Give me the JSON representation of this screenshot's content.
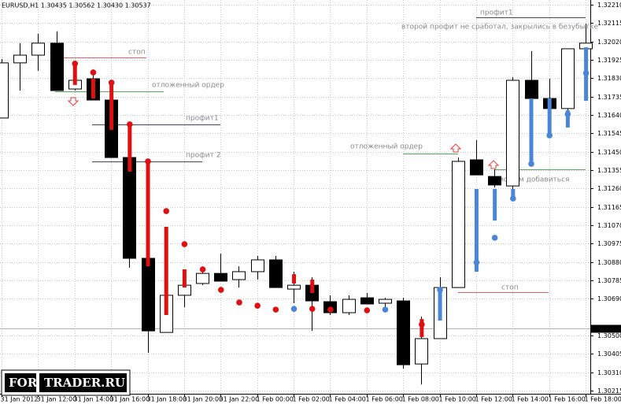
{
  "chart_data": {
    "type": "candlestick",
    "header": "EURUSD,H1  1.30435 1.30562 1.30430 1.30537",
    "categories": [
      "31 Jan 2012",
      null,
      "31 Jan 12:00",
      null,
      "31 Jan 14:00",
      null,
      "31 Jan 16:00",
      null,
      "31 Jan 18:00",
      null,
      "31 Jan 20:00",
      null,
      "31 Jan 22:00",
      null,
      "1 Feb 00:00",
      null,
      "1 Feb 02:00",
      null,
      "1 Feb 04:00",
      null,
      "1 Feb 06:00",
      null,
      "1 Feb 08:00",
      null,
      "1 Feb 10:00",
      null,
      "1 Feb 12:00",
      null,
      "1 Feb 14:00",
      null,
      "1 Feb 16:00",
      null,
      "1 Feb 18:00"
    ],
    "open": [
      1.31624,
      1.31909,
      1.31949,
      1.32011,
      1.31774,
      1.31827,
      1.31717,
      1.3142,
      1.30899,
      1.30516,
      1.30708,
      1.30769,
      1.30821,
      1.30789,
      1.3083,
      1.30891,
      1.3074,
      1.3076,
      1.30675,
      1.30618,
      1.30695,
      1.30667,
      1.30679,
      1.30353,
      1.30484,
      1.30748,
      1.31408,
      1.31322,
      1.31273,
      1.31819,
      1.31725,
      1.31673,
      1.31982
    ],
    "high": [
      1.31929,
      1.32011,
      1.32059,
      1.32072,
      1.31868,
      1.3186,
      1.31766,
      1.3142,
      1.30899,
      1.30708,
      1.3083,
      1.3085,
      1.30923,
      1.30858,
      1.30911,
      1.30911,
      1.3083,
      1.30801,
      1.30708,
      1.30708,
      1.3072,
      1.30695,
      1.30695,
      1.30598,
      1.30801,
      1.3142,
      1.3151,
      1.31359,
      1.31835,
      1.3197,
      1.31827,
      1.31982,
      1.32112
    ],
    "low": [
      1.31624,
      1.31766,
      1.31868,
      1.31766,
      1.31766,
      1.31717,
      1.3142,
      1.3085,
      1.3041,
      1.30516,
      1.30646,
      1.3076,
      1.30781,
      1.30748,
      1.30789,
      1.30748,
      1.30667,
      1.30524,
      1.30606,
      1.30606,
      1.30663,
      1.30646,
      1.30329,
      1.30247,
      1.30484,
      1.30748,
      1.3133,
      1.31265,
      1.31216,
      1.31725,
      1.31664,
      1.31664,
      1.31982
    ],
    "close": [
      1.31909,
      1.31949,
      1.32011,
      1.31766,
      1.31819,
      1.31717,
      1.3142,
      1.30899,
      1.30524,
      1.30708,
      1.3076,
      1.30821,
      1.30781,
      1.3083,
      1.30891,
      1.30748,
      1.3076,
      1.30679,
      1.30618,
      1.30687,
      1.30663,
      1.30687,
      1.30349,
      1.30484,
      1.30748,
      1.314,
      1.3133,
      1.31278,
      1.31819,
      1.31725,
      1.31673,
      1.31982,
      1.32011
    ],
    "bull_color": "#ffffff",
    "bear_color": "#000000",
    "signals": [
      {
        "color": "#e01010",
        "bars": [
          null,
          null,
          null,
          null,
          [
            1.31901,
            1.31795
          ],
          [
            1.31827,
            1.31725
          ],
          [
            1.31807,
            1.31563
          ],
          [
            1.31583,
            1.31347
          ],
          [
            1.31412,
            1.30858
          ],
          [
            1.31062,
            1.30606
          ],
          [
            1.30842,
            1.30748
          ],
          null,
          null,
          null,
          null,
          null,
          [
            1.30817,
            1.30769
          ],
          [
            1.30789,
            1.3072
          ],
          null,
          null,
          null,
          null,
          null,
          [
            1.30585,
            1.30492
          ],
          null,
          null,
          null,
          null,
          null,
          null,
          null,
          null,
          null
        ],
        "dots": [
          null,
          null,
          null,
          null,
          1.31905,
          1.3186,
          1.31807,
          1.31591,
          1.314,
          1.31143,
          1.30972,
          1.30842,
          1.30736,
          1.30671,
          1.30654,
          1.30634,
          null,
          1.30638,
          1.30634,
          null,
          1.3063,
          null,
          null,
          1.30557,
          null,
          null,
          null,
          null,
          null,
          null,
          null,
          null,
          null
        ]
      },
      {
        "color": "#4a86d8",
        "bars": [
          null,
          null,
          null,
          null,
          null,
          null,
          null,
          null,
          null,
          null,
          null,
          null,
          null,
          null,
          null,
          null,
          null,
          null,
          null,
          null,
          null,
          null,
          null,
          null,
          [
            1.30736,
            1.30577
          ],
          null,
          [
            1.31257,
            1.3083
          ],
          [
            1.31257,
            1.31094
          ],
          [
            1.31257,
            1.31196
          ],
          [
            1.31725,
            1.314
          ],
          [
            1.31725,
            1.31542
          ],
          [
            1.31664,
            1.31575
          ],
          [
            1.3199,
            1.31713
          ]
        ],
        "dots": [
          null,
          null,
          null,
          null,
          null,
          null,
          null,
          null,
          null,
          null,
          null,
          null,
          null,
          null,
          null,
          null,
          1.30638,
          null,
          null,
          null,
          null,
          1.30634,
          null,
          null,
          1.30736,
          null,
          1.30878,
          1.31005,
          1.31208,
          1.31387,
          1.31534,
          1.31644,
          1.31856
        ]
      }
    ],
    "annotations": [
      {
        "text": "стоп",
        "level": 1.31937,
        "color": "#e06060"
      },
      {
        "text": "отложенный ордер",
        "level": 1.31762,
        "color": "#55aa55"
      },
      {
        "text": "профит1",
        "level": 1.31591,
        "color": "#44446a"
      },
      {
        "text": "профит 2",
        "level": 1.314,
        "color": "#44446a"
      },
      {
        "text": "профит1",
        "level": 1.32145,
        "color": "#44446a"
      },
      {
        "text": "отложенный ордер",
        "level": 1.3144,
        "color": "#55aa55"
      },
      {
        "text": "можем добавиться",
        "level": 1.31359,
        "color": "#55aa55"
      },
      {
        "text": "стоп",
        "level": 1.30723,
        "color": "#e06060"
      }
    ],
    "note": "второй профит не сработал, закрылись в безубытке",
    "last_price": 1.30537,
    "ylim": [
      1.30199,
      1.32234
    ],
    "yticks": [
      {
        "value": 1.3221,
        "label": "1.32210"
      },
      {
        "value": 1.32115,
        "label": "1.32115"
      },
      {
        "value": 1.3202,
        "label": "1.32020"
      },
      {
        "value": 1.31925,
        "label": "1.31925"
      },
      {
        "value": 1.3183,
        "label": "1.31830"
      },
      {
        "value": 1.31735,
        "label": "1.31735"
      },
      {
        "value": 1.3164,
        "label": "1.31640"
      },
      {
        "value": 1.31545,
        "label": "1.31545"
      },
      {
        "value": 1.3145,
        "label": "1.31450"
      },
      {
        "value": 1.31355,
        "label": "1.31355"
      },
      {
        "value": 1.3126,
        "label": "1.31260"
      },
      {
        "value": 1.31165,
        "label": "1.31165"
      },
      {
        "value": 1.3107,
        "label": "1.31070"
      },
      {
        "value": 1.30975,
        "label": "1.30975"
      },
      {
        "value": 1.3088,
        "label": "1.30880"
      },
      {
        "value": 1.30785,
        "label": "1.30785"
      },
      {
        "value": 1.3069,
        "label": "1.30690"
      },
      {
        "value": 1.305,
        "label": "1.30500"
      },
      {
        "value": 1.30405,
        "label": "1.30405"
      },
      {
        "value": 1.3031,
        "label": "1.30310"
      },
      {
        "value": 1.30215,
        "label": "1.30215"
      }
    ],
    "grid": true
  },
  "watermark": {
    "left": "FOR",
    "right": "TRADER.RU"
  }
}
